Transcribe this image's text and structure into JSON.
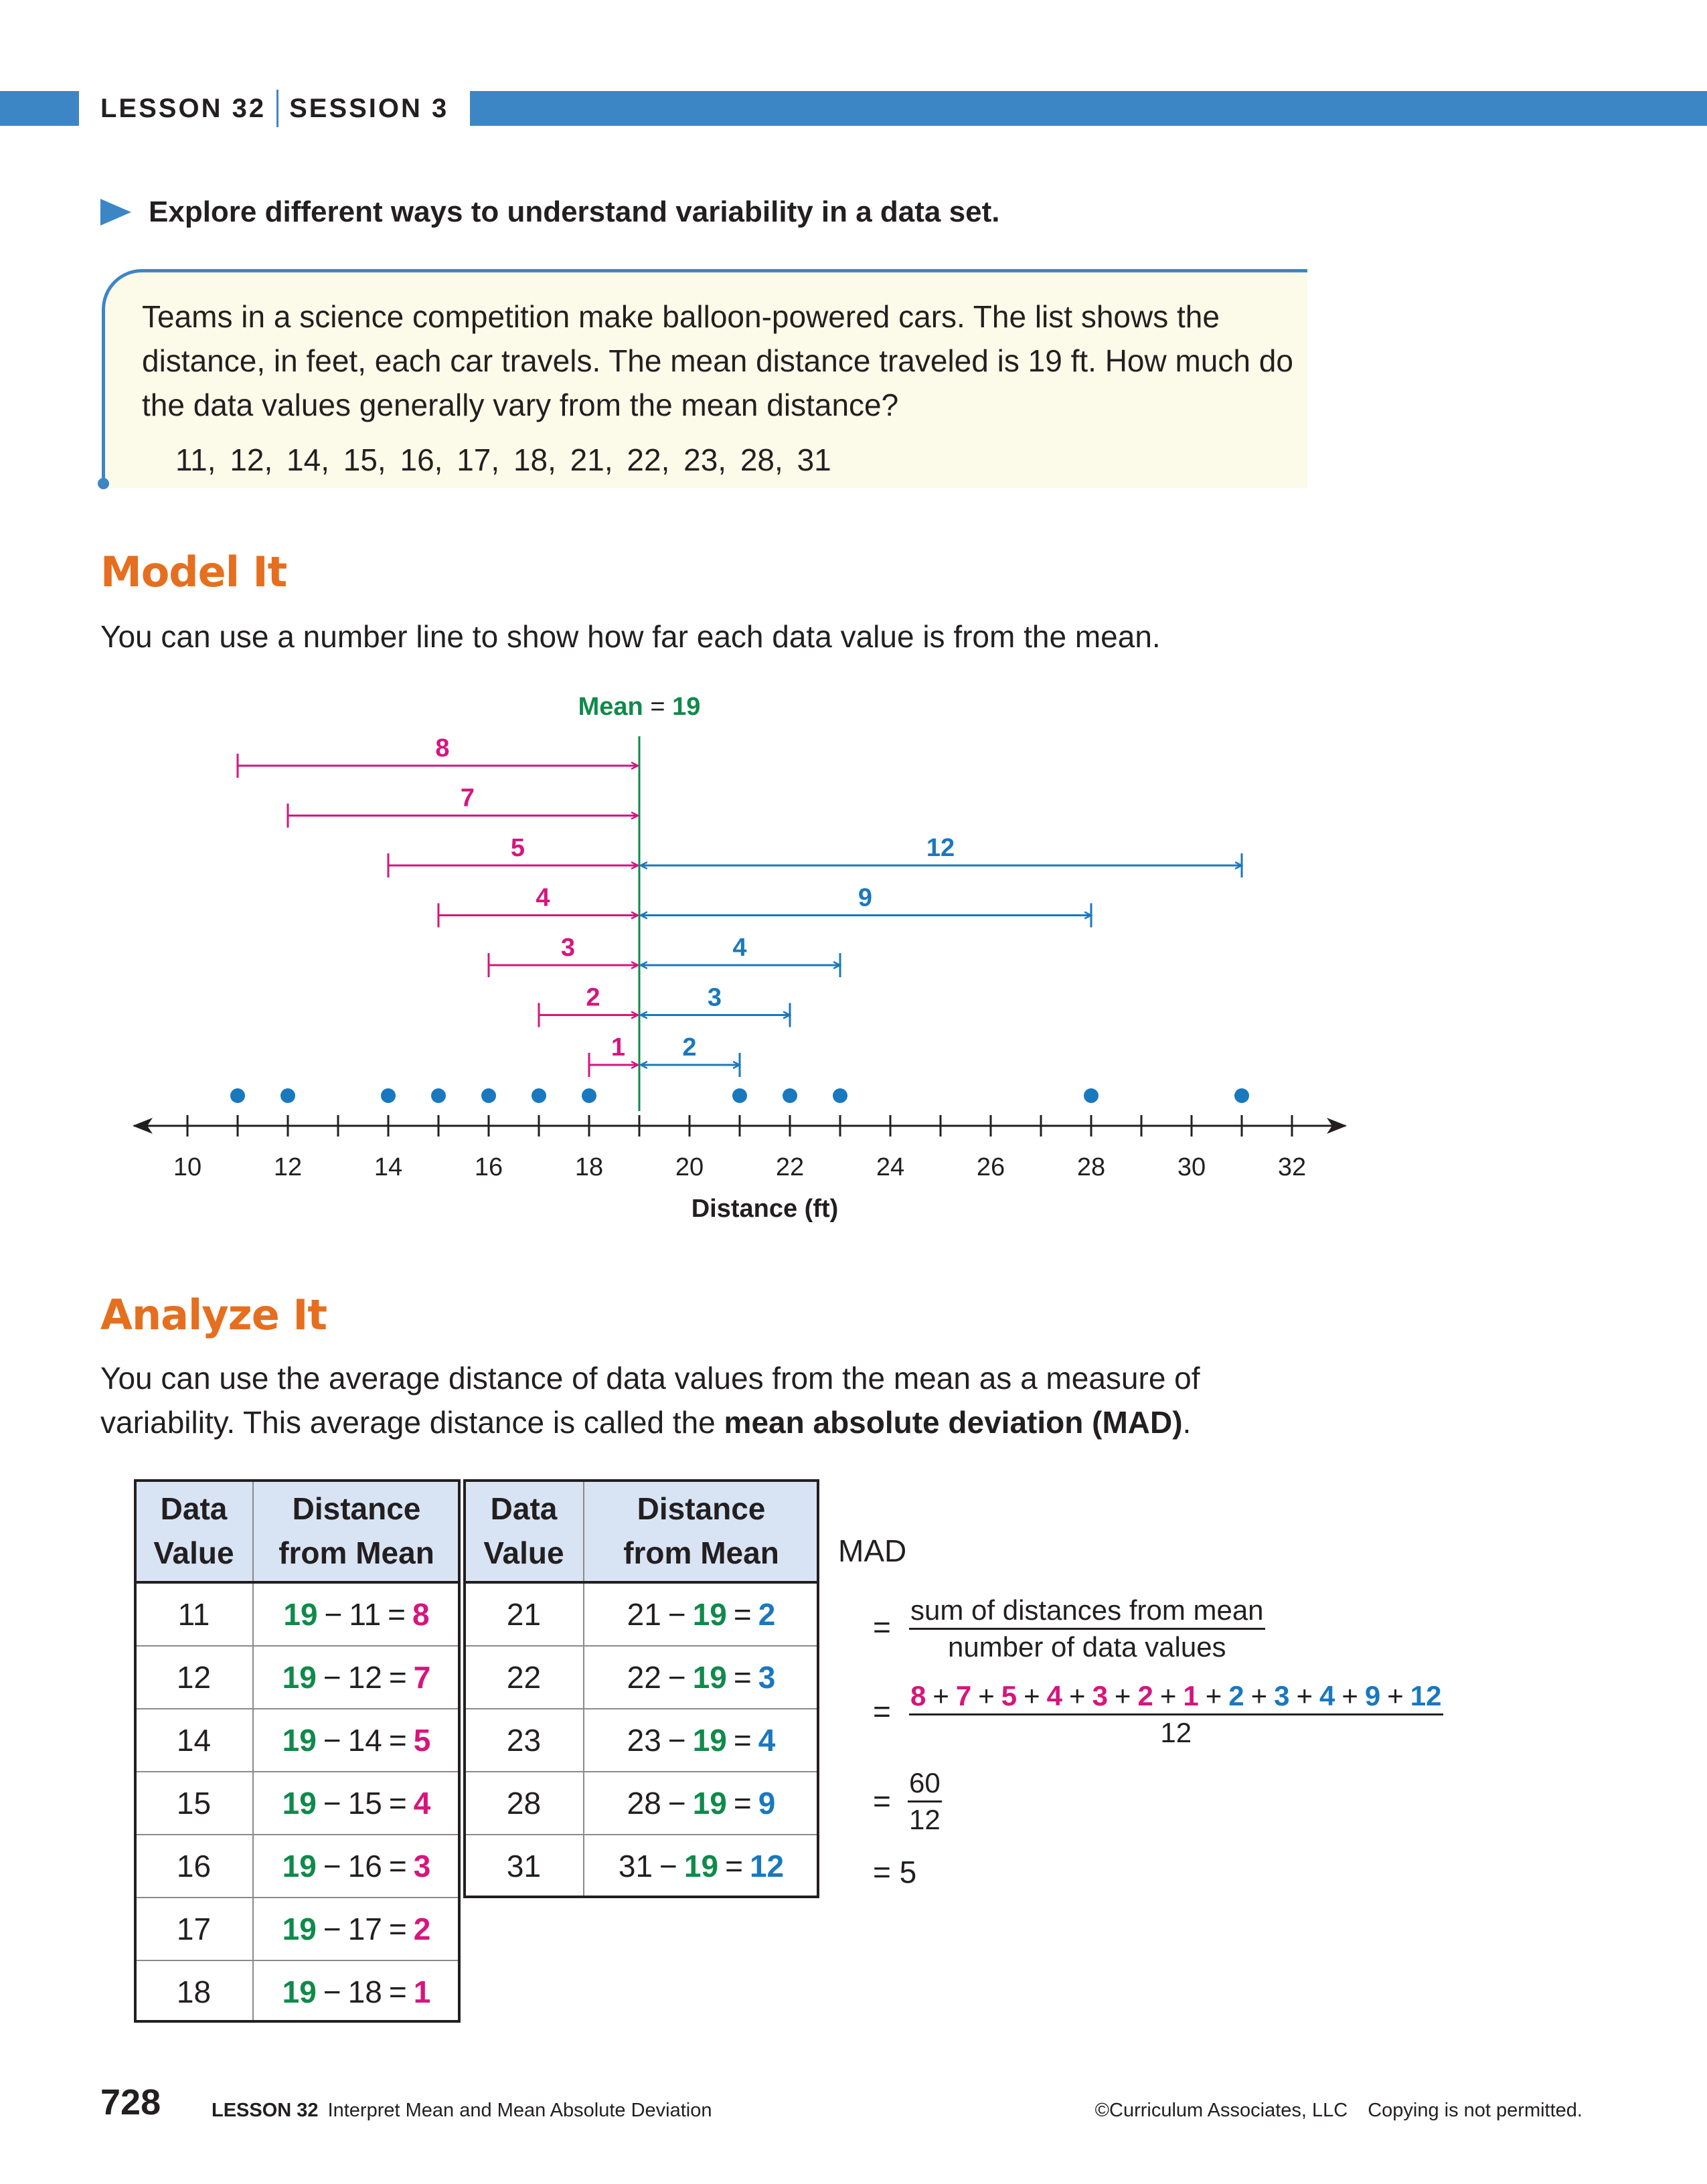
{
  "header": {
    "lesson": "LESSON 32",
    "session": "SESSION 3"
  },
  "explore": "Explore different ways to understand variability in a data set.",
  "problem": {
    "text": "Teams in a science competition make balloon-powered cars. The list shows the distance, in feet, each car travels. The mean distance traveled is 19 ft. How much do the data values generally vary from the mean distance?",
    "data_list": "11, 12, 14, 15, 16, 17, 18, 21, 22, 23, 28, 31"
  },
  "model_it": {
    "heading": "Model It",
    "text": "You can use a number line to show how far each data value is from the mean."
  },
  "chart_data": {
    "type": "scatter",
    "xlabel": "Distance (ft)",
    "xlim": [
      9,
      33
    ],
    "ticks": [
      10,
      12,
      14,
      16,
      18,
      20,
      22,
      24,
      26,
      28,
      30,
      32
    ],
    "values": [
      11,
      12,
      14,
      15,
      16,
      17,
      18,
      21,
      22,
      23,
      28,
      31
    ],
    "mean": 19,
    "mean_label_word": "Mean",
    "mean_label_eq": "=",
    "mean_label_value": "19",
    "left_arrows": [
      {
        "from": 11,
        "label": "8"
      },
      {
        "from": 12,
        "label": "7"
      },
      {
        "from": 14,
        "label": "5"
      },
      {
        "from": 15,
        "label": "4"
      },
      {
        "from": 16,
        "label": "3"
      },
      {
        "from": 17,
        "label": "2"
      },
      {
        "from": 18,
        "label": "1"
      }
    ],
    "right_arrows": [
      {
        "to": 31,
        "label": "12"
      },
      {
        "to": 28,
        "label": "9"
      },
      {
        "to": 23,
        "label": "4"
      },
      {
        "to": 22,
        "label": "3"
      },
      {
        "to": 21,
        "label": "2"
      }
    ],
    "colors": {
      "below": "#d6157e",
      "above": "#1a78be",
      "mean": "#0f8a4a",
      "dots": "#1a78be",
      "axis": "#231f20"
    }
  },
  "analyze_it": {
    "heading": "Analyze It",
    "text_before": "You can use the average distance of data values from the mean as a measure of variability. This average distance is called the ",
    "term": "mean absolute deviation (MAD)",
    "text_after": "."
  },
  "table": {
    "headers": {
      "data": "Data",
      "value": "Value",
      "distance": "Distance",
      "from_mean": "from Mean"
    },
    "minus": "−",
    "equals": "=",
    "left_rows": [
      {
        "value": "11",
        "mean": "19",
        "result": "8"
      },
      {
        "value": "12",
        "mean": "19",
        "result": "7"
      },
      {
        "value": "14",
        "mean": "19",
        "result": "5"
      },
      {
        "value": "15",
        "mean": "19",
        "result": "4"
      },
      {
        "value": "16",
        "mean": "19",
        "result": "3"
      },
      {
        "value": "17",
        "mean": "19",
        "result": "2"
      },
      {
        "value": "18",
        "mean": "19",
        "result": "1"
      }
    ],
    "right_rows": [
      {
        "value": "21",
        "mean": "19",
        "result": "2"
      },
      {
        "value": "22",
        "mean": "19",
        "result": "3"
      },
      {
        "value": "23",
        "mean": "19",
        "result": "4"
      },
      {
        "value": "28",
        "mean": "19",
        "result": "9"
      },
      {
        "value": "31",
        "mean": "19",
        "result": "12"
      }
    ]
  },
  "mad": {
    "label": "MAD",
    "equals": "=",
    "plus": "+",
    "formula_num": "sum of distances from mean",
    "formula_den": "number of data values",
    "sum_pink": [
      "8",
      "7",
      "5",
      "4",
      "3",
      "2",
      "1"
    ],
    "sum_blue": [
      "2",
      "3",
      "4",
      "9",
      "12"
    ],
    "sum_den": "12",
    "frac_num": "60",
    "frac_den": "12",
    "result": "5"
  },
  "footer": {
    "page_number": "728",
    "lesson": "LESSON 32",
    "lesson_title": "Interpret Mean and Mean Absolute Deviation",
    "copyright": "©Curriculum Associates, LLC",
    "notice": "Copying is not permitted."
  }
}
